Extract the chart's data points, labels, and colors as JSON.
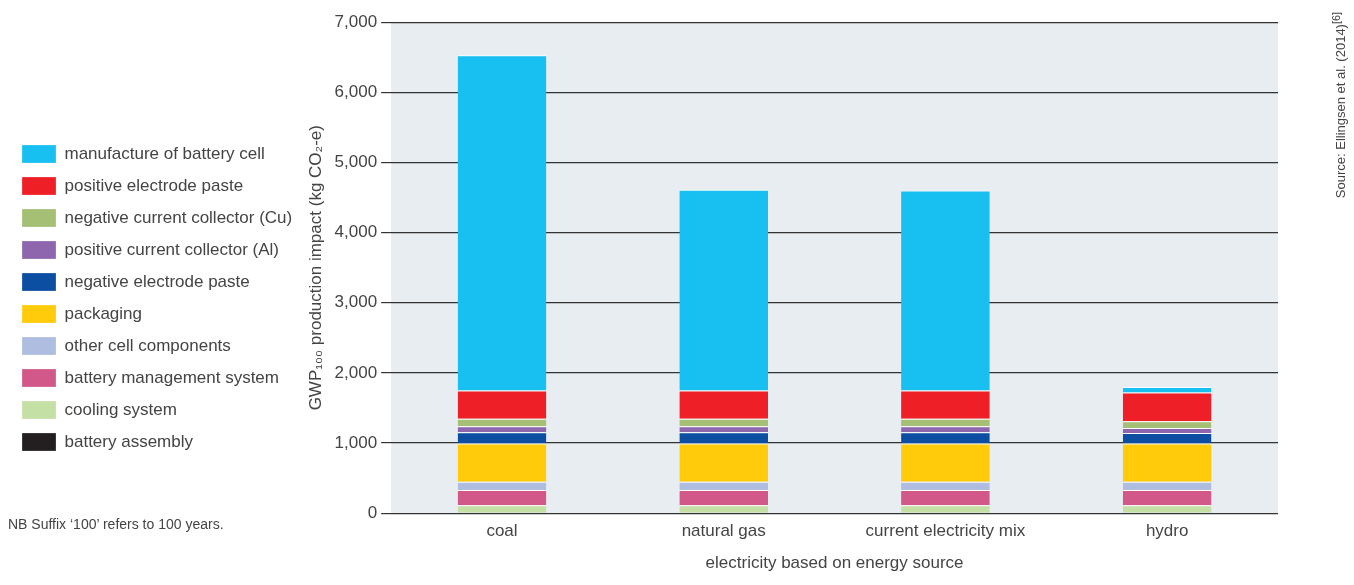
{
  "chart_data": {
    "type": "bar",
    "stacked": true,
    "categories": [
      "coal",
      "natural gas",
      "current electricity mix",
      "hydro"
    ],
    "series": [
      {
        "name": "battery assembly",
        "color": "#231f20",
        "values": [
          5,
          5,
          5,
          5
        ]
      },
      {
        "name": "cooling system",
        "color": "#c5e0a5",
        "values": [
          110,
          110,
          110,
          110
        ]
      },
      {
        "name": "battery management system",
        "color": "#d2588a",
        "values": [
          215,
          215,
          215,
          215
        ]
      },
      {
        "name": "other cell components",
        "color": "#aebde0",
        "values": [
          120,
          120,
          120,
          120
        ]
      },
      {
        "name": "packaging",
        "color": "#ffcb0b",
        "values": [
          545,
          545,
          545,
          545
        ]
      },
      {
        "name": "negative electrode paste",
        "color": "#0c4ea2",
        "values": [
          160,
          160,
          160,
          150
        ]
      },
      {
        "name": "positive current collector (Al)",
        "color": "#8e66ae",
        "values": [
          85,
          85,
          85,
          70
        ]
      },
      {
        "name": "negative current collector (Cu)",
        "color": "#a5bf74",
        "values": [
          105,
          105,
          105,
          95
        ]
      },
      {
        "name": "positive electrode paste",
        "color": "#ee1f26",
        "values": [
          405,
          405,
          405,
          410
        ]
      },
      {
        "name": "manufacture of battery cell",
        "color": "#17c0f1",
        "values": [
          4780,
          2860,
          2850,
          80
        ]
      }
    ],
    "ylim": [
      0,
      7000
    ],
    "yticks": [
      {
        "value": 0,
        "label": "0"
      },
      {
        "value": 1000,
        "label": "1,000"
      },
      {
        "value": 2000,
        "label": "2,000"
      },
      {
        "value": 3000,
        "label": "3,000"
      },
      {
        "value": 4000,
        "label": "4,000"
      },
      {
        "value": 5000,
        "label": "5,000"
      },
      {
        "value": 6000,
        "label": "6,000"
      },
      {
        "value": 7000,
        "label": "7,000"
      }
    ],
    "grid": "y",
    "legend": "left",
    "xlabel": "electricity based on energy source",
    "ylabel": "GWP₁₀₀ production impact (kg CO₂-e)",
    "annotations": [
      "NB  Suffix ‘100’ refers to 100 years.",
      "Source: Ellingsen et al. (2014)$^{[6]}$"
    ]
  }
}
